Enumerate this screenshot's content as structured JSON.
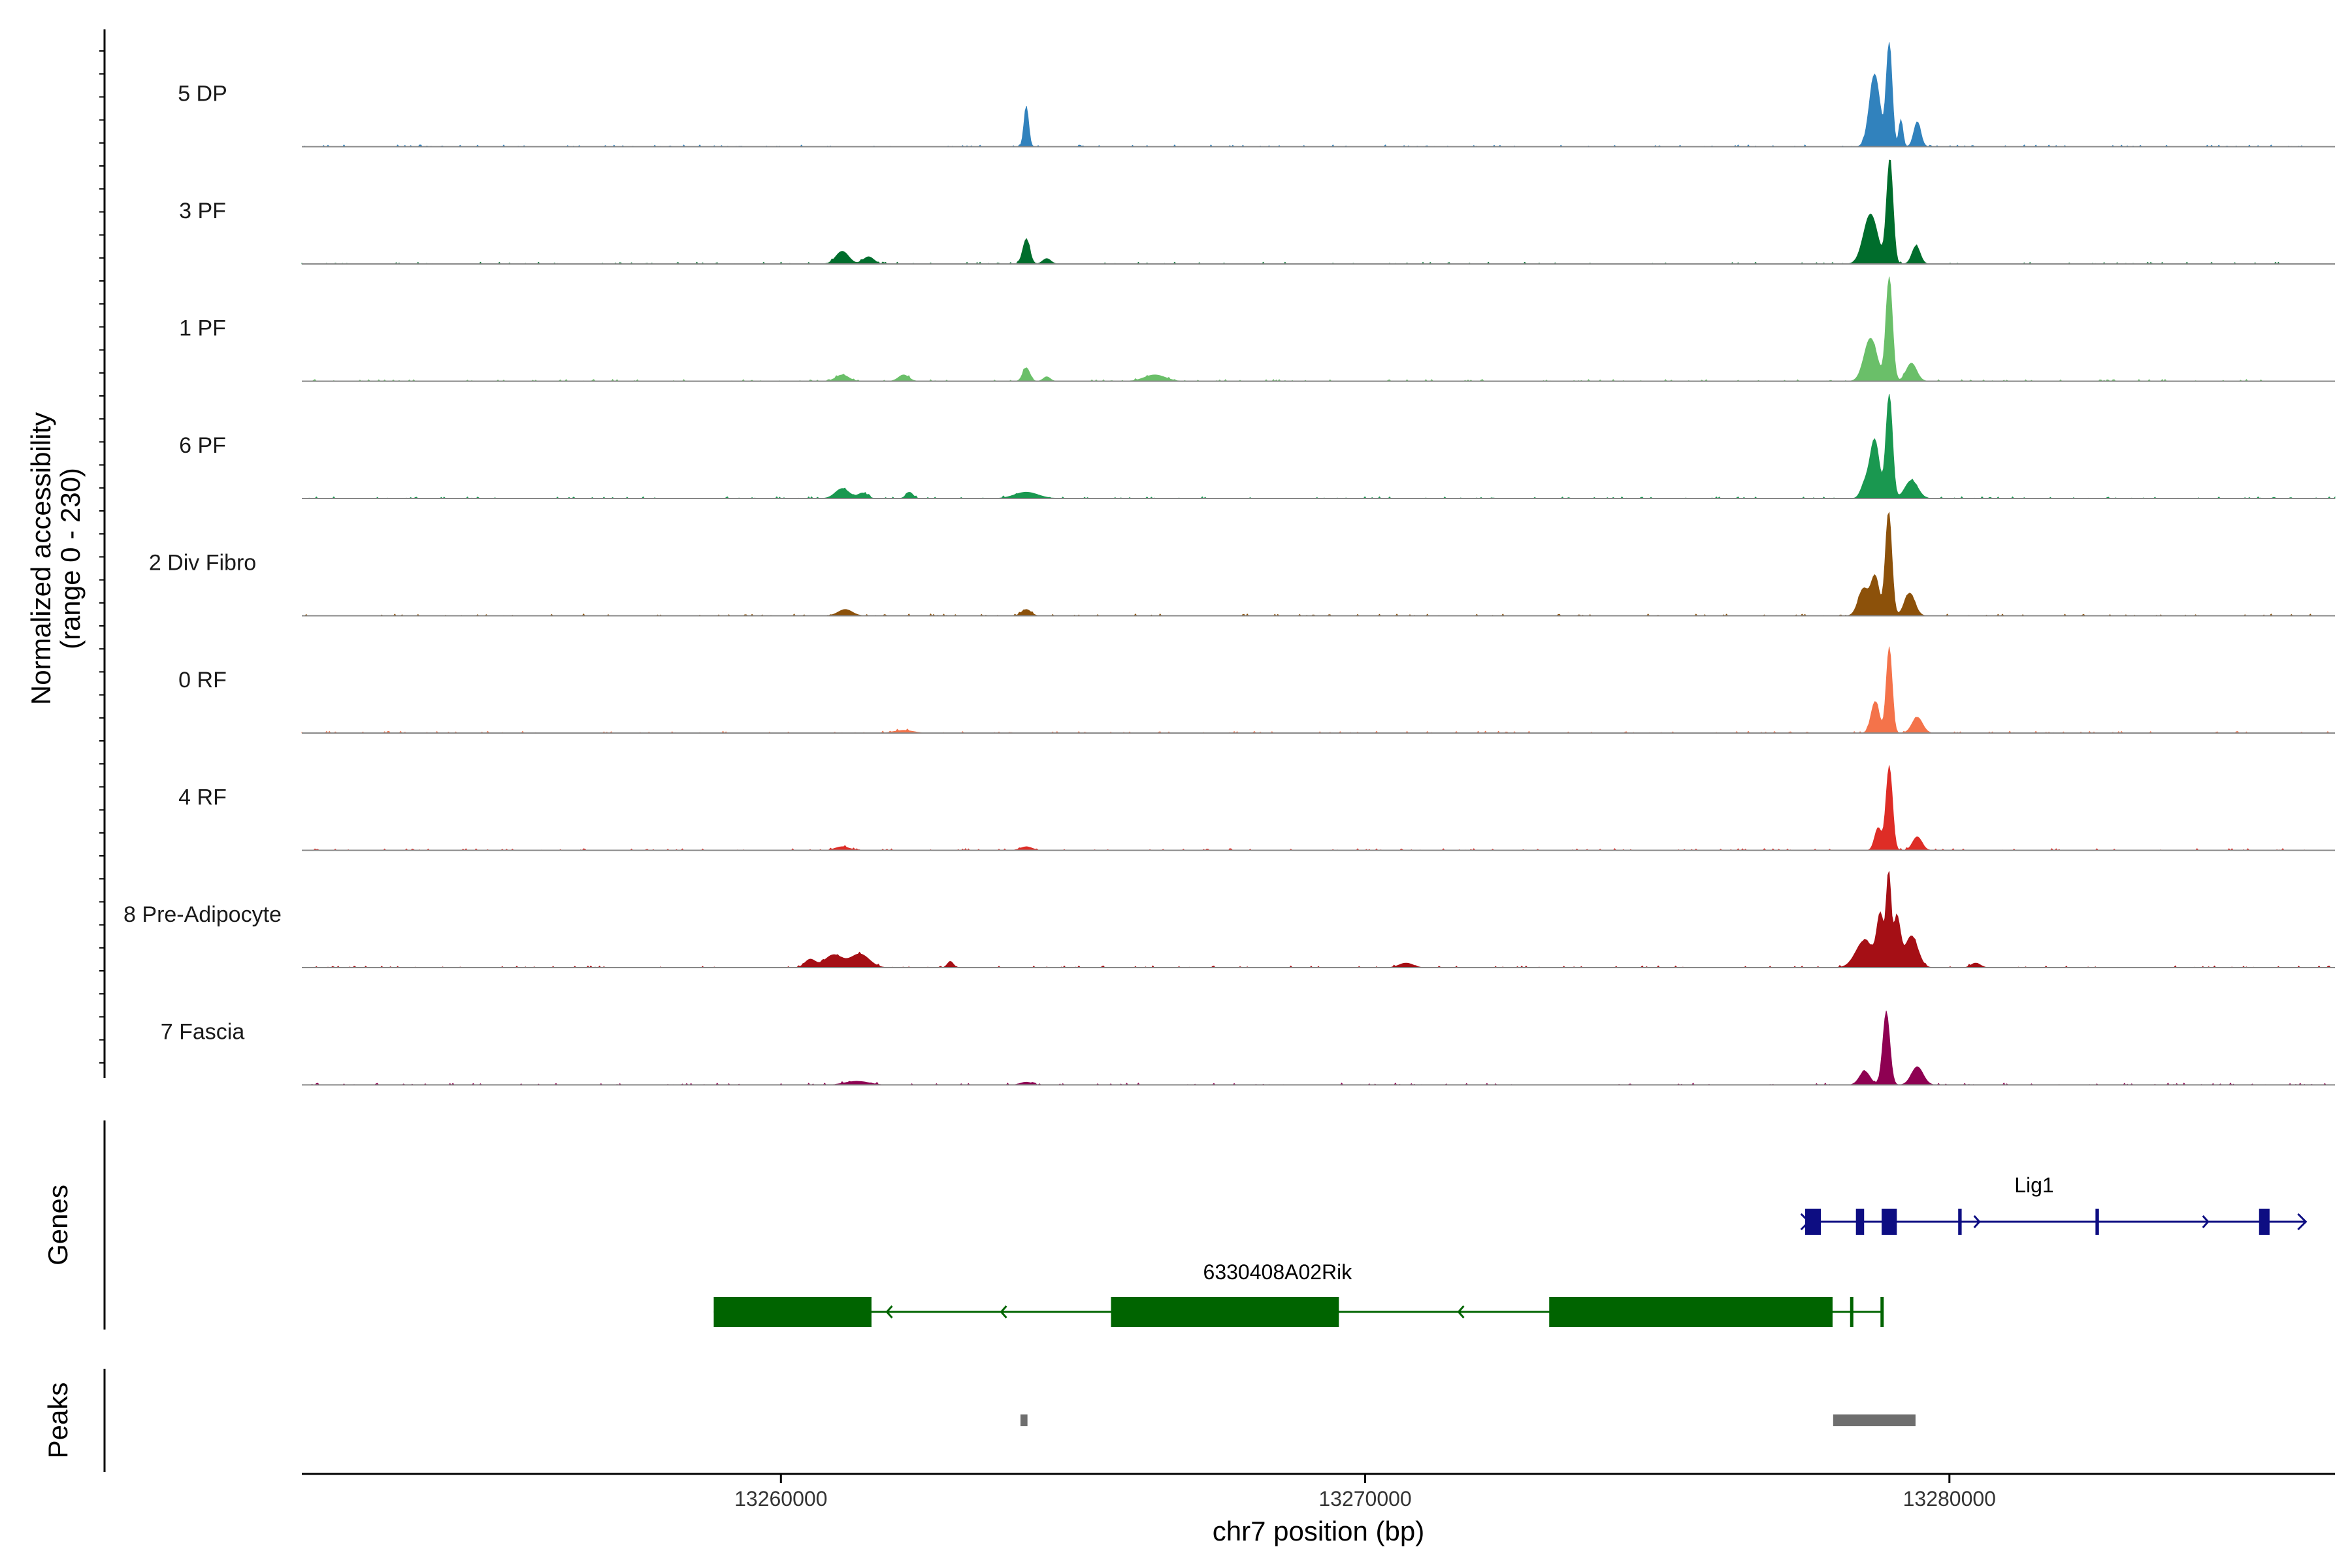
{
  "chart_data": {
    "type": "area",
    "title": "",
    "chromosome": "chr7",
    "xlabel": "chr7 position (bp)",
    "ylabel_line1": "Normalized accessibility",
    "ylabel_line2": "(range 0 - 230)",
    "y_range": [
      0,
      230
    ],
    "xlim": [
      13251800,
      13286600
    ],
    "x_ticks": [
      13260000,
      13270000,
      13280000
    ],
    "x_tick_labels": [
      "13260000",
      "13270000",
      "13280000"
    ],
    "panel_labels": {
      "genes": "Genes",
      "peaks": "Peaks"
    },
    "tracks": [
      {
        "name": "5 DP",
        "color": "#3182bd",
        "peaks": [
          [
            13264200,
            40,
            90
          ],
          [
            13278720,
            90,
            160
          ],
          [
            13278970,
            50,
            230
          ],
          [
            13279170,
            35,
            60
          ],
          [
            13279450,
            60,
            55
          ]
        ]
      },
      {
        "name": "3 PF",
        "color": "#006d2c",
        "peaks": [
          [
            13261050,
            110,
            28
          ],
          [
            13261500,
            90,
            16
          ],
          [
            13264200,
            60,
            55
          ],
          [
            13264550,
            70,
            12
          ],
          [
            13278650,
            120,
            110
          ],
          [
            13278980,
            55,
            230
          ],
          [
            13279430,
            70,
            40
          ]
        ]
      },
      {
        "name": "1 PF",
        "color": "#6abf69",
        "peaks": [
          [
            13261050,
            110,
            14
          ],
          [
            13262100,
            90,
            14
          ],
          [
            13264200,
            60,
            30
          ],
          [
            13264550,
            60,
            10
          ],
          [
            13266400,
            180,
            14
          ],
          [
            13278650,
            110,
            95
          ],
          [
            13278970,
            55,
            230
          ],
          [
            13279350,
            90,
            40
          ]
        ]
      },
      {
        "name": "6 PF",
        "color": "#1a9850",
        "peaks": [
          [
            13261050,
            120,
            22
          ],
          [
            13261400,
            80,
            12
          ],
          [
            13262200,
            60,
            14
          ],
          [
            13264200,
            200,
            14
          ],
          [
            13278550,
            70,
            30
          ],
          [
            13278720,
            80,
            130
          ],
          [
            13278970,
            55,
            230
          ],
          [
            13279350,
            110,
            40
          ]
        ]
      },
      {
        "name": "2 Div Fibro",
        "color": "#8c510a",
        "peaks": [
          [
            13261100,
            120,
            14
          ],
          [
            13264200,
            80,
            14
          ],
          [
            13278530,
            90,
            60
          ],
          [
            13278730,
            70,
            85
          ],
          [
            13278960,
            55,
            230
          ],
          [
            13279320,
            90,
            50
          ]
        ]
      },
      {
        "name": "0 RF",
        "color": "#f4734a",
        "peaks": [
          [
            13262100,
            160,
            6
          ],
          [
            13278730,
            70,
            70
          ],
          [
            13278970,
            50,
            190
          ],
          [
            13279450,
            90,
            35
          ]
        ]
      },
      {
        "name": "4 RF",
        "color": "#de2d26",
        "peaks": [
          [
            13261050,
            120,
            8
          ],
          [
            13264200,
            100,
            8
          ],
          [
            13278780,
            60,
            50
          ],
          [
            13278970,
            55,
            185
          ],
          [
            13279450,
            80,
            30
          ]
        ]
      },
      {
        "name": "8 Pre-Adipocyte",
        "color": "#a50f15",
        "peaks": [
          [
            13260500,
            90,
            18
          ],
          [
            13260900,
            150,
            28
          ],
          [
            13261350,
            160,
            30
          ],
          [
            13262900,
            50,
            14
          ],
          [
            13270700,
            120,
            10
          ],
          [
            13278550,
            150,
            60
          ],
          [
            13278820,
            60,
            110
          ],
          [
            13278960,
            40,
            200
          ],
          [
            13279100,
            60,
            110
          ],
          [
            13279350,
            110,
            70
          ],
          [
            13280450,
            80,
            10
          ]
        ]
      },
      {
        "name": "7 Fascia",
        "color": "#8e0152",
        "peaks": [
          [
            13261300,
            200,
            8
          ],
          [
            13264200,
            100,
            6
          ],
          [
            13278550,
            90,
            30
          ],
          [
            13278920,
            60,
            160
          ],
          [
            13279450,
            100,
            40
          ]
        ]
      }
    ],
    "genes": [
      {
        "name": "Lig1",
        "strand": "+",
        "color": "#0d0d82",
        "start": 13277550,
        "end": 13286100,
        "exons": [
          [
            13277530,
            13277800
          ],
          [
            13278400,
            13278540
          ],
          [
            13278840,
            13279100
          ],
          [
            13280150,
            13280210
          ],
          [
            13282500,
            13282560
          ],
          [
            13285300,
            13285480
          ]
        ]
      },
      {
        "name": "6330408A02Rik",
        "strand": "-",
        "color": "#006400",
        "start": 13258850,
        "end": 13278870,
        "exons": [
          [
            13258850,
            13261550
          ],
          [
            13265650,
            13269550
          ],
          [
            13273150,
            13278000
          ],
          [
            13278300,
            13278350
          ],
          [
            13278820,
            13278870
          ]
        ]
      }
    ],
    "peak_regions": [
      [
        13264100,
        13264220
      ],
      [
        13278010,
        13279420
      ]
    ]
  }
}
